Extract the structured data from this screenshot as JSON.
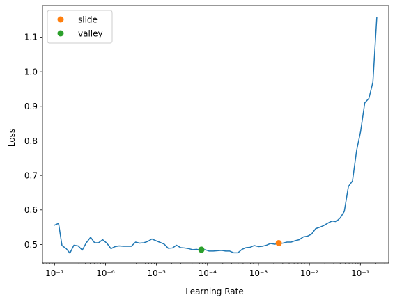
{
  "chart_data": {
    "type": "line",
    "xlabel": "Learning Rate",
    "ylabel": "Loss",
    "xscale": "log",
    "xlim": [
      5.8e-08,
      0.36
    ],
    "ylim": [
      0.4466,
      1.1915
    ],
    "grid": false,
    "legend_position": "top-left",
    "x_tick_labels": [
      "10⁻⁷",
      "10⁻⁶",
      "10⁻⁵",
      "10⁻⁴",
      "10⁻³",
      "10⁻²",
      "10⁻¹"
    ],
    "x_tick_values": [
      1e-07,
      1e-06,
      1e-05,
      0.0001,
      0.001,
      0.01,
      0.1
    ],
    "y_ticks": [
      0.5,
      0.6,
      0.7,
      0.8,
      0.9,
      1.0,
      1.1
    ],
    "y_tick_labels": [
      "0.5",
      "0.6",
      "0.7",
      "0.8",
      "0.9",
      "1.0",
      "1.1"
    ],
    "series": [
      {
        "color": "#1f77b4",
        "x": [
          1e-07,
          1.2e-07,
          1.4e-07,
          1.7e-07,
          2e-07,
          2.4e-07,
          2.9e-07,
          3.5e-07,
          4.2e-07,
          5.1e-07,
          6.1e-07,
          7.3e-07,
          8.8e-07,
          1.06e-06,
          1.28e-06,
          1.54e-06,
          1.85e-06,
          2.23e-06,
          2.68e-06,
          3.22e-06,
          3.88e-06,
          4.67e-06,
          5.62e-06,
          6.76e-06,
          8.13e-06,
          9.78e-06,
          1.18e-05,
          1.42e-05,
          1.7e-05,
          2.05e-05,
          2.47e-05,
          2.97e-05,
          3.57e-05,
          4.3e-05,
          5.17e-05,
          6.22e-05,
          7.48e-05,
          9e-05,
          0.000108,
          0.00013,
          0.000157,
          0.000189,
          0.000227,
          0.000273,
          0.000329,
          0.000395,
          0.000476,
          0.000572,
          0.000688,
          0.000828,
          0.000996,
          0.0012,
          0.00144,
          0.00173,
          0.00209,
          0.00251,
          0.00302,
          0.00363,
          0.00437,
          0.00526,
          0.00633,
          0.00761,
          0.00916,
          0.011,
          0.0133,
          0.016,
          0.0192,
          0.0231,
          0.0278,
          0.0334,
          0.0402,
          0.0484,
          0.0582,
          0.07,
          0.0843,
          0.101,
          0.122,
          0.147,
          0.176,
          0.21
        ],
        "y": [
          0.556,
          0.561,
          0.497,
          0.488,
          0.475,
          0.498,
          0.496,
          0.484,
          0.505,
          0.521,
          0.505,
          0.505,
          0.514,
          0.504,
          0.488,
          0.494,
          0.496,
          0.495,
          0.495,
          0.495,
          0.507,
          0.504,
          0.505,
          0.509,
          0.516,
          0.511,
          0.506,
          0.501,
          0.489,
          0.49,
          0.498,
          0.491,
          0.49,
          0.488,
          0.485,
          0.486,
          0.483,
          0.485,
          0.481,
          0.481,
          0.482,
          0.483,
          0.481,
          0.481,
          0.476,
          0.476,
          0.486,
          0.491,
          0.492,
          0.497,
          0.494,
          0.495,
          0.498,
          0.503,
          0.501,
          0.503,
          0.504,
          0.507,
          0.507,
          0.511,
          0.514,
          0.522,
          0.524,
          0.53,
          0.546,
          0.55,
          0.555,
          0.562,
          0.568,
          0.566,
          0.577,
          0.596,
          0.668,
          0.684,
          0.772,
          0.827,
          0.91,
          0.923,
          0.97,
          1.157
        ]
      }
    ],
    "markers": [
      {
        "name": "slide",
        "color": "#ff7f0e",
        "x": 0.0025,
        "y": 0.504
      },
      {
        "name": "valley",
        "color": "#2ca02c",
        "x": 7.6e-05,
        "y": 0.485
      }
    ]
  }
}
